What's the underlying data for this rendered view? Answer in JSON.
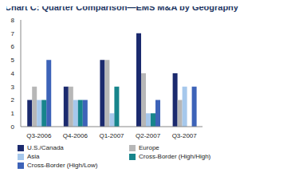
{
  "chart_data": {
    "type": "bar",
    "title": "Chart C: Quarter Comparison—EMS M&A by Geography",
    "categories": [
      "Q3-2006",
      "Q4-2006",
      "Q1-2007",
      "Q2-2007",
      "Q3-2007"
    ],
    "series": [
      {
        "name": "U.S./Canada",
        "color": "#1b2a6e",
        "values": [
          2,
          3,
          5,
          7,
          4
        ]
      },
      {
        "name": "Europe",
        "color": "#b7b7b7",
        "values": [
          3,
          3,
          5,
          4,
          2
        ]
      },
      {
        "name": "Asia",
        "color": "#a6c8ec",
        "values": [
          2,
          2,
          1,
          1,
          3
        ]
      },
      {
        "name": "Cross-Border (High/High)",
        "color": "#17858c",
        "values": [
          2,
          2,
          3,
          1,
          0
        ]
      },
      {
        "name": "Cross-Border (High/Low)",
        "color": "#3d63b8",
        "values": [
          5,
          2,
          0,
          2,
          3
        ]
      }
    ],
    "ylim": [
      0,
      8
    ],
    "yticks": [
      0,
      1,
      2,
      3,
      4,
      5,
      6,
      7,
      8
    ],
    "grid": false,
    "legend": "bottom"
  }
}
